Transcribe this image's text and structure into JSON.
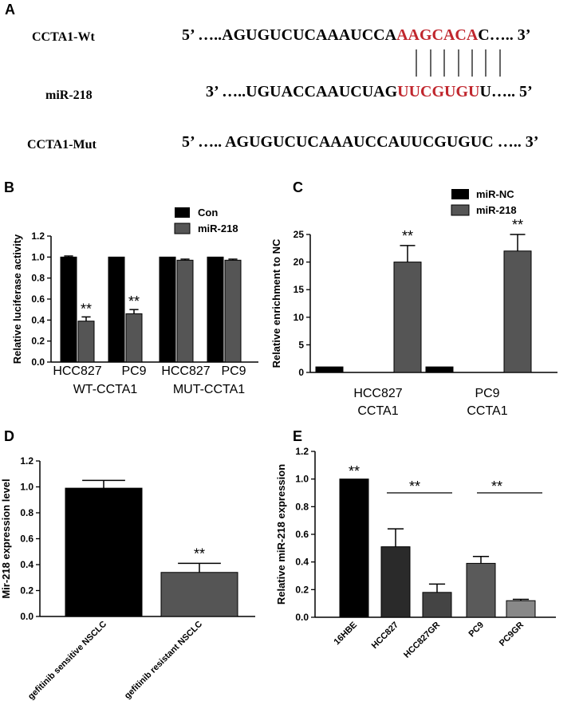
{
  "panel_a": {
    "letter": "A",
    "rows": [
      {
        "label": "CCTA1-Wt",
        "prefix": "5’ …..AGUGUCUCAAAUCCA",
        "highlight": "AAGCACA",
        "suffix": "C….. 3’"
      },
      {
        "label": "miR-218",
        "prefix": "3’ …..UGUACCAAUCUAG",
        "highlight": "UUCGUGU",
        "suffix": "U….. 5’"
      },
      {
        "label": "CCTA1-Mut",
        "prefix": "5’ ….. AGUGUCUCAAAUCCAUUCGUGUC ….. 3’",
        "highlight": "",
        "suffix": ""
      }
    ]
  },
  "colors": {
    "black": "#000000",
    "gray": "#555555",
    "red": "#c0262d"
  },
  "chart_data": [
    {
      "id": "B",
      "type": "bar",
      "ylabel": "Relative luciferase activity",
      "ylim": [
        0,
        1.2
      ],
      "yticks": [
        "0.0",
        "0.2",
        "0.4",
        "0.6",
        "0.8",
        "1.0",
        "1.2"
      ],
      "categories": [
        "HCC827",
        "PC9",
        "HCC827",
        "PC9"
      ],
      "group_labels": [
        "WT-CCTA1",
        "MUT-CCTA1"
      ],
      "series": [
        {
          "name": "Con",
          "color": "#000000",
          "values": [
            1.0,
            1.0,
            1.0,
            1.0
          ],
          "errors": [
            0.01,
            0.0,
            0.0,
            0.0
          ]
        },
        {
          "name": "miR-218",
          "color": "#555555",
          "values": [
            0.39,
            0.46,
            0.97,
            0.97
          ],
          "errors": [
            0.04,
            0.04,
            0.01,
            0.01
          ]
        }
      ],
      "annotations": [
        "**",
        "**"
      ]
    },
    {
      "id": "C",
      "type": "bar",
      "ylabel": "Relative enrichment to NC",
      "ylim": [
        0,
        25
      ],
      "yticks": [
        "0",
        "5",
        "10",
        "15",
        "20",
        "25"
      ],
      "categories": [
        "HCC827\nCCTA1",
        "PC9\nCCTA1"
      ],
      "series": [
        {
          "name": "miR-NC",
          "color": "#000000",
          "values": [
            1,
            1
          ],
          "errors": [
            0,
            0
          ]
        },
        {
          "name": "miR-218",
          "color": "#555555",
          "values": [
            20,
            22
          ],
          "errors": [
            3,
            3
          ]
        }
      ],
      "annotations": [
        "**",
        "**"
      ]
    },
    {
      "id": "D",
      "type": "bar",
      "ylabel": "Mir-218 expression level",
      "ylim": [
        0,
        1.2
      ],
      "yticks": [
        "0.0",
        "0.2",
        "0.4",
        "0.6",
        "0.8",
        "1.0",
        "1.2"
      ],
      "categories": [
        "gefitinib sensitive NSCLC",
        "gefitinib resistant NSCLC"
      ],
      "values": [
        0.99,
        0.34
      ],
      "errors": [
        0.06,
        0.07
      ],
      "colors": [
        "#000000",
        "#555555"
      ],
      "annotations": [
        "**"
      ]
    },
    {
      "id": "E",
      "type": "bar",
      "ylabel": "Relative miR-218 expression",
      "ylim": [
        0,
        1.2
      ],
      "yticks": [
        "0.0",
        "0.2",
        "0.4",
        "0.6",
        "0.8",
        "1.0",
        "1.2"
      ],
      "categories": [
        "16HBE",
        "HCC827",
        "HCC827GR",
        "PC9",
        "PC9GR"
      ],
      "values": [
        1.0,
        0.51,
        0.18,
        0.39,
        0.12
      ],
      "errors": [
        0.0,
        0.13,
        0.06,
        0.05,
        0.01
      ],
      "colors": [
        "#000000",
        "#2a2a2a",
        "#444444",
        "#5a5a5a",
        "#888888"
      ],
      "annotations": [
        "**",
        "**",
        "**"
      ]
    }
  ]
}
